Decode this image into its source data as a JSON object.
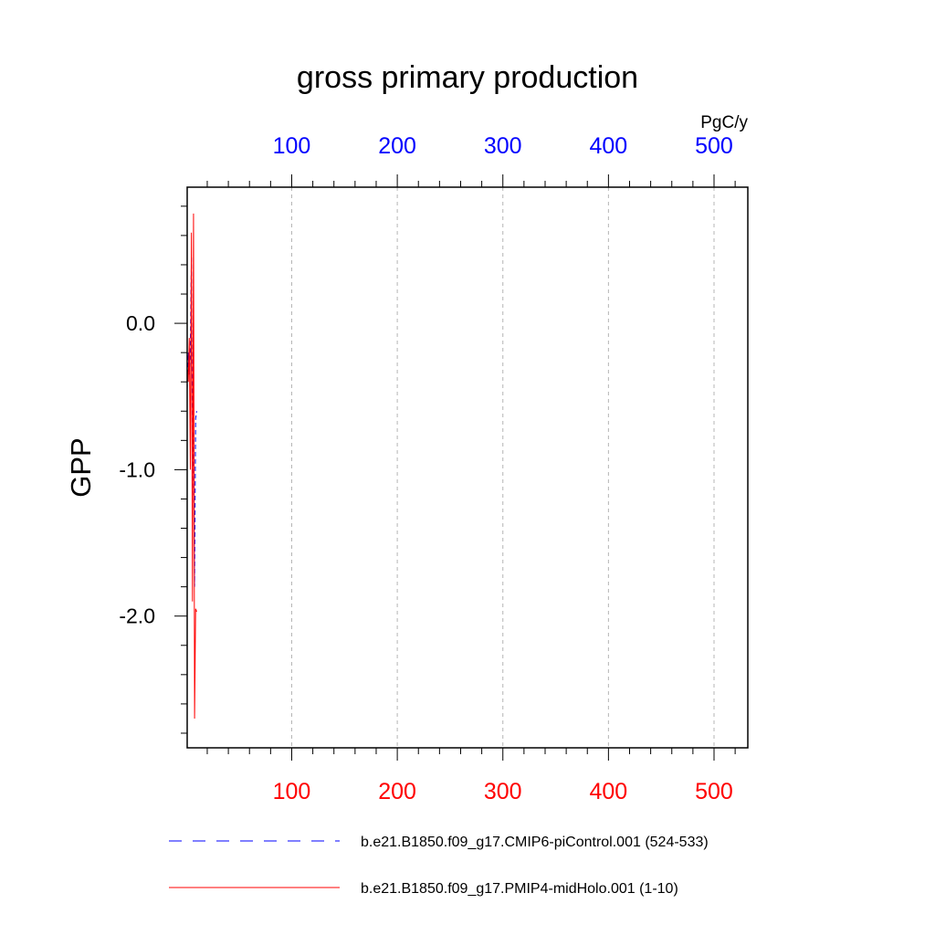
{
  "chart_data": {
    "type": "line",
    "title": "gross primary production",
    "ylabel": "GPP",
    "top_axis": {
      "unit_label": "PgC/y",
      "color": "#0000ff",
      "tick_labels": [
        "100",
        "200",
        "300",
        "400",
        "500"
      ],
      "tick_values": [
        100,
        200,
        300,
        400,
        500
      ]
    },
    "bottom_axis": {
      "color": "#ff0000",
      "tick_labels": [
        "100",
        "200",
        "300",
        "400",
        "500"
      ],
      "tick_values": [
        100,
        200,
        300,
        400,
        500
      ]
    },
    "xlim": [
      1,
      532
    ],
    "ylim": [
      -2.9,
      0.93
    ],
    "y_tick_labels": [
      "0.0",
      "-1.0",
      "-2.0"
    ],
    "y_tick_values": [
      0,
      -1,
      -2
    ],
    "grid": "vertical dashed",
    "legend_placement": "bottom",
    "series": [
      {
        "name": "b.e21.B1850.f09_g17.CMIP6-piControl.001 (524-533)",
        "color": "#0000ff",
        "dash": "dashed",
        "x": [
          1,
          2,
          3,
          4,
          5,
          6,
          7,
          8,
          9,
          10
        ],
        "y": [
          -0.45,
          -0.2,
          -0.35,
          -0.15,
          0.45,
          -0.7,
          -0.8,
          -1.8,
          -0.65,
          -0.6
        ]
      },
      {
        "name": "b.e21.B1850.f09_g17.PMIP4-midHolo.001 (1-10)",
        "color": "#ff0000",
        "dash": "solid",
        "x": [
          1,
          2,
          3,
          4,
          5,
          6,
          7,
          8,
          9,
          10
        ],
        "y": [
          -0.3,
          -0.4,
          -0.1,
          -1.0,
          0.62,
          -1.9,
          0.75,
          -2.7,
          -1.95,
          -1.97
        ]
      }
    ]
  }
}
